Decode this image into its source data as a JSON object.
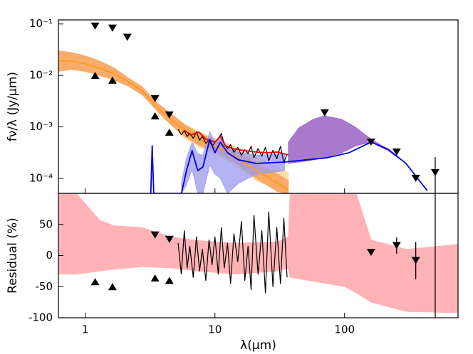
{
  "chart_data": [
    {
      "type": "line",
      "xscale": "log",
      "yscale": "log",
      "ylabel": "fν/λ (Jy/μm)",
      "xlim": [
        0.62,
        750
      ],
      "ylim": [
        5.1e-05,
        0.12
      ],
      "yticks": [
        {
          "value": 0.0001,
          "label": "10⁻⁴"
        },
        {
          "value": 0.001,
          "label": "10⁻³"
        },
        {
          "value": 0.01,
          "label": "10⁻²"
        },
        {
          "value": 0.1,
          "label": "10⁻¹"
        }
      ],
      "series": [
        {
          "kind": "band",
          "color": "#fbd9a0",
          "alpha": 0.9,
          "x": [
            3.54,
            4.56,
            5.87,
            7.55,
            10,
            14.2,
            20.8,
            30.5,
            36.8
          ],
          "upper": [
            0.003,
            0.0017,
            0.0011,
            0.0008,
            0.0006,
            0.00042,
            0.00026,
            0.00016,
            0.00013
          ],
          "lower": [
            0.0021,
            0.0011,
            0.0006,
            0.0004,
            0.0003,
            0.00018,
            9e-05,
            6e-05,
            5.1e-05
          ]
        },
        {
          "kind": "band",
          "color": "#f7a35c",
          "alpha": 0.9,
          "x": [
            0.62,
            0.776,
            1,
            1.29,
            1.66,
            2.14,
            2.75,
            3.54,
            4.56,
            5.87,
            7.55,
            10,
            14.2,
            20.8,
            30.5,
            36.8
          ],
          "upper": [
            0.03,
            0.028,
            0.024,
            0.019,
            0.014,
            0.009,
            0.006,
            0.003,
            0.0018,
            0.0011,
            0.00075,
            0.00055,
            0.00035,
            0.0002,
            0.00012,
            9e-05
          ],
          "lower": [
            0.012,
            0.013,
            0.012,
            0.01,
            0.0082,
            0.0062,
            0.0042,
            0.0021,
            0.0011,
            0.00065,
            0.00044,
            0.00033,
            0.0002,
            0.0001,
            5.5e-05,
            5.1e-05
          ]
        },
        {
          "kind": "band",
          "color": "#9a62c4",
          "alpha": 0.85,
          "x": [
            36.8,
            44.5,
            57.3,
            70.2,
            95.2,
            123,
            160,
            216,
            297,
            433
          ],
          "upper": [
            0.000506,
            0.00096,
            0.0014,
            0.00164,
            0.0014,
            0.00096,
            0.000575,
            0.000368,
            0.000195,
            5.8e-05
          ],
          "lower": [
            0.000195,
            0.000207,
            0.000228,
            0.000251,
            0.000314,
            0.00043,
            0.000506,
            0.000345,
            0.000195,
            5.8e-05
          ]
        },
        {
          "kind": "band",
          "color": "#9a9af0",
          "alpha": 0.75,
          "x": [
            5.52,
            6.03,
            6.66,
            7.37,
            8.07,
            9.13,
            10,
            11,
            12.5,
            15.2,
            20.8,
            34.4
          ],
          "upper": [
            8e-05,
            0.00025,
            0.0005,
            0.0003,
            0.00028,
            0.0008,
            0.0005,
            0.0007,
            0.0004,
            0.00032,
            0.00028,
            0.0003
          ],
          "lower": [
            5.1e-05,
            7.5e-05,
            0.00015,
            5.1e-05,
            5.1e-05,
            0.00018,
            0.00012,
            0.0001,
            5.1e-05,
            8e-05,
            0.00012,
            0.00014
          ]
        },
        {
          "kind": "line",
          "color": "#ff9a1a",
          "width": 1.8,
          "x": [
            0.62,
            0.776,
            1,
            1.29,
            1.66,
            2.14,
            2.75,
            3.54,
            4.56,
            5.87,
            7.55,
            10,
            14.2,
            20.8,
            30.5,
            36.8
          ],
          "y": [
            0.0191,
            0.0191,
            0.0168,
            0.0139,
            0.0108,
            0.0076,
            0.005,
            0.00249,
            0.0014,
            0.00084,
            0.000575,
            0.00043,
            0.000267,
            0.000141,
            8e-05,
            5.8e-05
          ]
        },
        {
          "kind": "line",
          "color": "#000000",
          "width": 1.2,
          "x": [
            5.2,
            5.5,
            5.8,
            6.1,
            6.4,
            6.8,
            7.2,
            7.6,
            8.0,
            8.5,
            9.0,
            9.5,
            10,
            10.6,
            11.2,
            11.8,
            12.5,
            13.2,
            14,
            15,
            16,
            17,
            18,
            19,
            20,
            21.5,
            23,
            24.5,
            26,
            28,
            30,
            32,
            34,
            36
          ],
          "y": [
            0.0009,
            0.0007,
            0.00085,
            0.00065,
            0.00075,
            0.0006,
            0.0008,
            0.00055,
            0.00065,
            0.00048,
            0.00055,
            0.00042,
            0.0005,
            0.00058,
            0.00075,
            0.00045,
            0.00038,
            0.00045,
            0.00032,
            0.0004,
            0.00028,
            0.00036,
            0.0003,
            0.00042,
            0.00025,
            0.00038,
            0.00027,
            0.0004,
            0.00022,
            0.00035,
            0.00024,
            0.00042,
            0.0002,
            0.0003
          ]
        },
        {
          "kind": "line",
          "color": "#e8000b",
          "width": 1.8,
          "x": [
            5.87,
            6.5,
            7.55,
            8.5,
            10,
            11,
            12,
            14.2,
            17,
            20.8,
            25,
            30.5,
            36.8
          ],
          "y": [
            0.00084,
            0.000695,
            0.00079,
            0.000575,
            0.000506,
            0.00065,
            0.00043,
            0.000368,
            0.000345,
            0.000324,
            0.000314,
            0.000324,
            0.000285
          ]
        },
        {
          "kind": "line",
          "color": "#0000dd",
          "width": 1.8,
          "x": [
            3.2,
            3.28,
            3.37,
            5.52,
            6.03,
            6.66,
            7.37,
            8.07,
            9.13,
            10,
            11,
            12.5,
            15.2,
            20.8,
            34.4,
            50.3,
            73.5,
            108,
            160,
            216,
            297,
            433
          ],
          "y": [
            5.1e-05,
            0.00043,
            5.1e-05,
            5.1e-05,
            0.000141,
            0.000345,
            0.000141,
            0.000166,
            0.000575,
            0.000314,
            0.000506,
            0.000314,
            0.000228,
            0.000195,
            0.000207,
            0.000228,
            0.000251,
            0.000314,
            0.000506,
            0.000368,
            0.000195,
            5.8e-05
          ]
        },
        {
          "kind": "markers",
          "marker": "v",
          "color": "#000000",
          "x": [
            1.19,
            1.62,
            2.11,
            3.45,
            4.45,
            70.2,
            160,
            252,
            354,
            500
          ],
          "y": [
            0.091,
            0.083,
            0.055,
            0.00353,
            0.0017,
            0.00187,
            0.000506,
            0.000324,
            0.0001,
            0.000129
          ],
          "yerr": [
            0,
            0,
            0,
            0,
            0,
            0,
            0,
            0,
            0,
            0.000129
          ]
        },
        {
          "kind": "markers",
          "marker": "^",
          "color": "#000000",
          "x": [
            1.19,
            1.62,
            3.45,
            4.45
          ],
          "y": [
            0.01,
            0.0081,
            0.00164,
            0.00079
          ],
          "yerr": [
            0,
            0,
            0,
            0
          ]
        }
      ]
    },
    {
      "type": "line",
      "xscale": "log",
      "yscale": "linear",
      "ylabel": "Residual (%)",
      "xlabel": "λ(μm)",
      "xlim": [
        0.62,
        750
      ],
      "ylim": [
        -100,
        100
      ],
      "xticks": [
        1,
        10,
        100
      ],
      "yticks": [
        -100,
        -50,
        0,
        50
      ],
      "hlines": [
        10,
        -10
      ],
      "series": [
        {
          "kind": "band",
          "color": "#ffb3b6",
          "alpha": 1,
          "x": [
            0.62,
            0.85,
            1.29,
            1.66,
            2.75,
            4.56,
            7.55,
            14.2,
            30.5,
            36.8,
            38,
            100,
            123,
            160,
            300,
            750
          ],
          "upper": [
            120,
            100,
            57,
            48,
            45,
            30,
            24,
            20,
            22,
            30,
            100,
            100,
            100,
            25,
            10,
            18
          ],
          "lower": [
            -30,
            -30,
            -25,
            -22,
            -18,
            -20,
            -25,
            -30,
            -25,
            -20,
            -35,
            -50,
            -60,
            -75,
            -90,
            -92
          ]
        },
        {
          "kind": "line",
          "color": "#000000",
          "width": 1.2,
          "x": [
            5.2,
            5.5,
            5.8,
            6.1,
            6.4,
            6.8,
            7.2,
            7.6,
            8.0,
            8.5,
            9.0,
            9.5,
            10,
            10.6,
            11.2,
            11.8,
            12.5,
            13.2,
            14,
            15,
            16,
            17,
            18,
            19,
            20,
            21.5,
            23,
            24.5,
            26,
            28,
            30,
            32,
            34,
            36
          ],
          "y": [
            20,
            -30,
            40,
            -20,
            15,
            -35,
            30,
            -25,
            10,
            -40,
            25,
            -15,
            30,
            -30,
            45,
            -20,
            20,
            -45,
            35,
            -10,
            55,
            -40,
            15,
            -55,
            65,
            -30,
            40,
            -60,
            70,
            -50,
            45,
            -45,
            60,
            -35
          ]
        },
        {
          "kind": "markers",
          "marker": "v",
          "color": "#000000",
          "x": [
            3.45,
            4.45,
            160,
            252,
            354
          ],
          "y": [
            33,
            26,
            5,
            16,
            -8
          ],
          "yerr": [
            0,
            0,
            0,
            13,
            30
          ]
        },
        {
          "kind": "markers",
          "marker": "^",
          "color": "#000000",
          "x": [
            1.19,
            1.62,
            3.45,
            4.45
          ],
          "y": [
            -42,
            -50,
            -36,
            -40
          ],
          "yerr": [
            0,
            0,
            0,
            0
          ]
        },
        {
          "kind": "markers",
          "marker": "none",
          "color": "#000000",
          "x": [
            500
          ],
          "y": [
            0
          ],
          "yerr": [
            150
          ]
        }
      ]
    }
  ]
}
